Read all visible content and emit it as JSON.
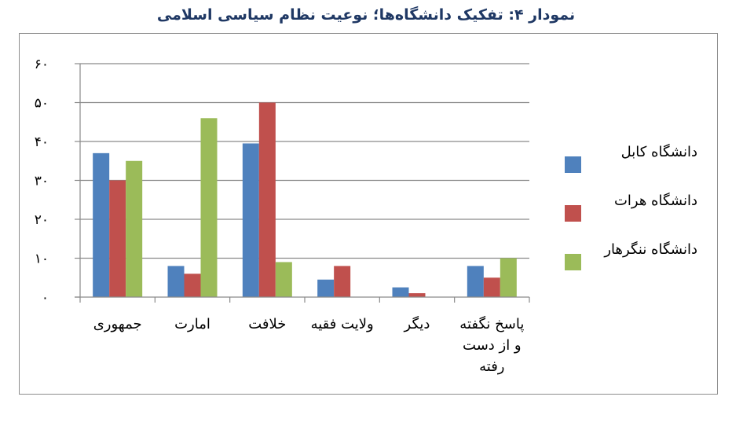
{
  "chart_data": {
    "type": "bar",
    "title": "نمودار ۴: تفکیک دانشگاه‌ها؛ نوعیت نظام سیاسی اسلامی",
    "categories": [
      "جمهوری",
      "امارت",
      "خلافت",
      "ولایت فقیه",
      "دیگر",
      "پاسخ نگفته و از دست رفته"
    ],
    "category_lines": [
      [
        "جمهوری"
      ],
      [
        "امارت"
      ],
      [
        "خلافت"
      ],
      [
        "ولایت فقیه"
      ],
      [
        "دیگر"
      ],
      [
        "پاسخ نگفته",
        "و از دست",
        "رفته"
      ]
    ],
    "series": [
      {
        "name": "دانشگاه کابل",
        "color": "#4f81bd",
        "values": [
          37,
          8,
          39.5,
          4.5,
          2.5,
          8
        ]
      },
      {
        "name": "دانشگاه هرات",
        "color": "#c0504d",
        "values": [
          30,
          6,
          50,
          8,
          1,
          5
        ]
      },
      {
        "name": "دانشگاه ننگرهار",
        "color": "#9bbb59",
        "values": [
          35,
          46,
          9,
          0,
          0,
          10
        ]
      }
    ],
    "ylim": [
      0,
      60
    ],
    "yticks": [
      0,
      10,
      20,
      30,
      40,
      50,
      60
    ],
    "ytick_labels": [
      "۰",
      "۱۰",
      "۲۰",
      "۳۰",
      "۴۰",
      "۵۰",
      "۶۰"
    ],
    "grid": true,
    "legend_position": "right"
  }
}
